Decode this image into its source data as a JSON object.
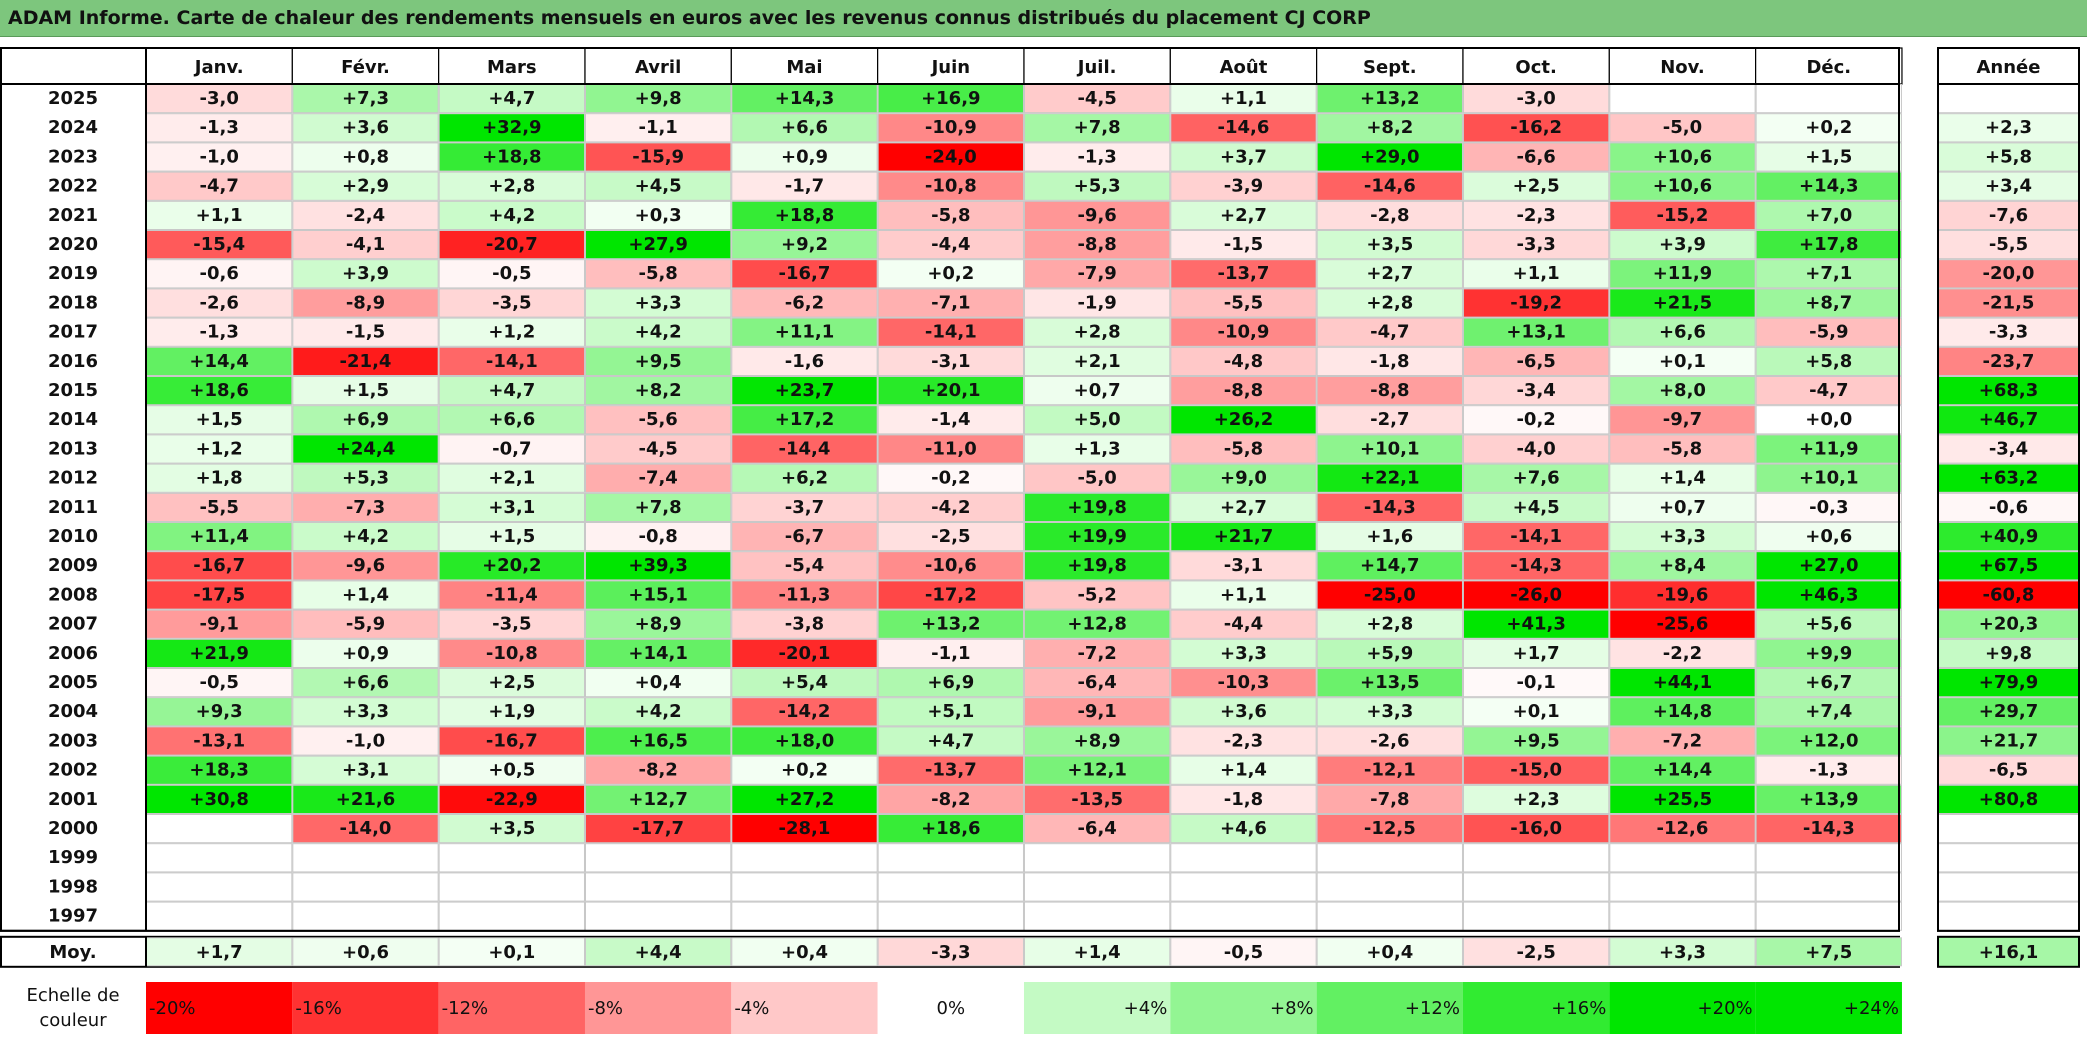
{
  "title": "ADAM Informe. Carte de chaleur des rendements mensuels en euros avec les revenus connus distribués du placement CJ CORP",
  "colors": {
    "title_bg": "#7dc67d",
    "max_red": "#ff0000",
    "max_green": "#00e600",
    "neutral": "#ffffff"
  },
  "chart_data": {
    "type": "heatmap",
    "title": "ADAM Informe. Carte de chaleur des rendements mensuels en euros avec les revenus connus distribués du placement CJ CORP",
    "months": [
      "Janv.",
      "Févr.",
      "Mars",
      "Avril",
      "Mai",
      "Juin",
      "Juil.",
      "Août",
      "Sept.",
      "Oct.",
      "Nov.",
      "Déc."
    ],
    "year_header": "Année",
    "rows": [
      {
        "year": "2025",
        "values": [
          "-3,0",
          "+7,3",
          "+4,7",
          "+9,8",
          "+14,3",
          "+16,9",
          "-4,5",
          "+1,1",
          "+13,2",
          "-3,0",
          "",
          ""
        ],
        "annual": ""
      },
      {
        "year": "2024",
        "values": [
          "-1,3",
          "+3,6",
          "+32,9",
          "-1,1",
          "+6,6",
          "-10,9",
          "+7,8",
          "-14,6",
          "+8,2",
          "-16,2",
          "-5,0",
          "+0,2"
        ],
        "annual": "+2,3"
      },
      {
        "year": "2023",
        "values": [
          "-1,0",
          "+0,8",
          "+18,8",
          "-15,9",
          "+0,9",
          "-24,0",
          "-1,3",
          "+3,7",
          "+29,0",
          "-6,6",
          "+10,6",
          "+1,5"
        ],
        "annual": "+5,8"
      },
      {
        "year": "2022",
        "values": [
          "-4,7",
          "+2,9",
          "+2,8",
          "+4,5",
          "-1,7",
          "-10,8",
          "+5,3",
          "-3,9",
          "-14,6",
          "+2,5",
          "+10,6",
          "+14,3"
        ],
        "annual": "+3,4"
      },
      {
        "year": "2021",
        "values": [
          "+1,1",
          "-2,4",
          "+4,2",
          "+0,3",
          "+18,8",
          "-5,8",
          "-9,6",
          "+2,7",
          "-2,8",
          "-2,3",
          "-15,2",
          "+7,0"
        ],
        "annual": "-7,6"
      },
      {
        "year": "2020",
        "values": [
          "-15,4",
          "-4,1",
          "-20,7",
          "+27,9",
          "+9,2",
          "-4,4",
          "-8,8",
          "-1,5",
          "+3,5",
          "-3,3",
          "+3,9",
          "+17,8"
        ],
        "annual": "-5,5"
      },
      {
        "year": "2019",
        "values": [
          "-0,6",
          "+3,9",
          "-0,5",
          "-5,8",
          "-16,7",
          "+0,2",
          "-7,9",
          "-13,7",
          "+2,7",
          "+1,1",
          "+11,9",
          "+7,1"
        ],
        "annual": "-20,0"
      },
      {
        "year": "2018",
        "values": [
          "-2,6",
          "-8,9",
          "-3,5",
          "+3,3",
          "-6,2",
          "-7,1",
          "-1,9",
          "-5,5",
          "+2,8",
          "-19,2",
          "+21,5",
          "+8,7"
        ],
        "annual": "-21,5"
      },
      {
        "year": "2017",
        "values": [
          "-1,3",
          "-1,5",
          "+1,2",
          "+4,2",
          "+11,1",
          "-14,1",
          "+2,8",
          "-10,9",
          "-4,7",
          "+13,1",
          "+6,6",
          "-5,9"
        ],
        "annual": "-3,3"
      },
      {
        "year": "2016",
        "values": [
          "+14,4",
          "-21,4",
          "-14,1",
          "+9,5",
          "-1,6",
          "-3,1",
          "+2,1",
          "-4,8",
          "-1,8",
          "-6,5",
          "+0,1",
          "+5,8"
        ],
        "annual": "-23,7"
      },
      {
        "year": "2015",
        "values": [
          "+18,6",
          "+1,5",
          "+4,7",
          "+8,2",
          "+23,7",
          "+20,1",
          "+0,7",
          "-8,8",
          "-8,8",
          "-3,4",
          "+8,0",
          "-4,7"
        ],
        "annual": "+68,3"
      },
      {
        "year": "2014",
        "values": [
          "+1,5",
          "+6,9",
          "+6,6",
          "-5,6",
          "+17,2",
          "-1,4",
          "+5,0",
          "+26,2",
          "-2,7",
          "-0,2",
          "-9,7",
          "+0,0"
        ],
        "annual": "+46,7"
      },
      {
        "year": "2013",
        "values": [
          "+1,2",
          "+24,4",
          "-0,7",
          "-4,5",
          "-14,4",
          "-11,0",
          "+1,3",
          "-5,8",
          "+10,1",
          "-4,0",
          "-5,8",
          "+11,9"
        ],
        "annual": "-3,4"
      },
      {
        "year": "2012",
        "values": [
          "+1,8",
          "+5,3",
          "+2,1",
          "-7,4",
          "+6,2",
          "-0,2",
          "-5,0",
          "+9,0",
          "+22,1",
          "+7,6",
          "+1,4",
          "+10,1"
        ],
        "annual": "+63,2"
      },
      {
        "year": "2011",
        "values": [
          "-5,5",
          "-7,3",
          "+3,1",
          "+7,8",
          "-3,7",
          "-4,2",
          "+19,8",
          "+2,7",
          "-14,3",
          "+4,5",
          "+0,7",
          "-0,3"
        ],
        "annual": "-0,6"
      },
      {
        "year": "2010",
        "values": [
          "+11,4",
          "+4,2",
          "+1,5",
          "-0,8",
          "-6,7",
          "-2,5",
          "+19,9",
          "+21,7",
          "+1,6",
          "-14,1",
          "+3,3",
          "+0,6"
        ],
        "annual": "+40,9"
      },
      {
        "year": "2009",
        "values": [
          "-16,7",
          "-9,6",
          "+20,2",
          "+39,3",
          "-5,4",
          "-10,6",
          "+19,8",
          "-3,1",
          "+14,7",
          "-14,3",
          "+8,4",
          "+27,0"
        ],
        "annual": "+67,5"
      },
      {
        "year": "2008",
        "values": [
          "-17,5",
          "+1,4",
          "-11,4",
          "+15,1",
          "-11,3",
          "-17,2",
          "-5,2",
          "+1,1",
          "-25,0",
          "-26,0",
          "-19,6",
          "+46,3"
        ],
        "annual": "-60,8"
      },
      {
        "year": "2007",
        "values": [
          "-9,1",
          "-5,9",
          "-3,5",
          "+8,9",
          "-3,8",
          "+13,2",
          "+12,8",
          "-4,4",
          "+2,8",
          "+41,3",
          "-25,6",
          "+5,6"
        ],
        "annual": "+20,3"
      },
      {
        "year": "2006",
        "values": [
          "+21,9",
          "+0,9",
          "-10,8",
          "+14,1",
          "-20,1",
          "-1,1",
          "-7,2",
          "+3,3",
          "+5,9",
          "+1,7",
          "-2,2",
          "+9,9"
        ],
        "annual": "+9,8"
      },
      {
        "year": "2005",
        "values": [
          "-0,5",
          "+6,6",
          "+2,5",
          "+0,4",
          "+5,4",
          "+6,9",
          "-6,4",
          "-10,3",
          "+13,5",
          "-0,1",
          "+44,1",
          "+6,7"
        ],
        "annual": "+79,9"
      },
      {
        "year": "2004",
        "values": [
          "+9,3",
          "+3,3",
          "+1,9",
          "+4,2",
          "-14,2",
          "+5,1",
          "-9,1",
          "+3,6",
          "+3,3",
          "+0,1",
          "+14,8",
          "+7,4"
        ],
        "annual": "+29,7"
      },
      {
        "year": "2003",
        "values": [
          "-13,1",
          "-1,0",
          "-16,7",
          "+16,5",
          "+18,0",
          "+4,7",
          "+8,9",
          "-2,3",
          "-2,6",
          "+9,5",
          "-7,2",
          "+12,0"
        ],
        "annual": "+21,7"
      },
      {
        "year": "2002",
        "values": [
          "+18,3",
          "+3,1",
          "+0,5",
          "-8,2",
          "+0,2",
          "-13,7",
          "+12,1",
          "+1,4",
          "-12,1",
          "-15,0",
          "+14,4",
          "-1,3"
        ],
        "annual": "-6,5"
      },
      {
        "year": "2001",
        "values": [
          "+30,8",
          "+21,6",
          "-22,9",
          "+12,7",
          "+27,2",
          "-8,2",
          "-13,5",
          "-1,8",
          "-7,8",
          "+2,3",
          "+25,5",
          "+13,9"
        ],
        "annual": "+80,8"
      },
      {
        "year": "2000",
        "values": [
          "",
          "-14,0",
          "+3,5",
          "-17,7",
          "-28,1",
          "+18,6",
          "-6,4",
          "+4,6",
          "-12,5",
          "-16,0",
          "-12,6",
          "-14,3"
        ],
        "annual": ""
      },
      {
        "year": "1999",
        "values": [
          "",
          "",
          "",
          "",
          "",
          "",
          "",
          "",
          "",
          "",
          "",
          ""
        ],
        "annual": ""
      },
      {
        "year": "1998",
        "values": [
          "",
          "",
          "",
          "",
          "",
          "",
          "",
          "",
          "",
          "",
          "",
          ""
        ],
        "annual": ""
      },
      {
        "year": "1997",
        "values": [
          "",
          "",
          "",
          "",
          "",
          "",
          "",
          "",
          "",
          "",
          "",
          ""
        ],
        "annual": ""
      }
    ],
    "average": {
      "label": "Moy.",
      "values": [
        "+1,7",
        "+0,6",
        "+0,1",
        "+4,4",
        "+0,4",
        "-3,3",
        "+1,4",
        "-0,5",
        "+0,4",
        "-2,5",
        "+3,3",
        "+7,5"
      ],
      "annual": "+16,1"
    },
    "scale": {
      "label_line1": "Echelle de",
      "label_line2": "couleur",
      "values": [
        "-20%",
        "-16%",
        "-12%",
        "-8%",
        "-4%",
        "0%",
        "+4%",
        "+8%",
        "+12%",
        "+16%",
        "+20%",
        "+24%"
      ],
      "levels": [
        -20,
        -16,
        -12,
        -8,
        -4,
        0,
        4,
        8,
        12,
        16,
        20,
        24
      ]
    }
  }
}
